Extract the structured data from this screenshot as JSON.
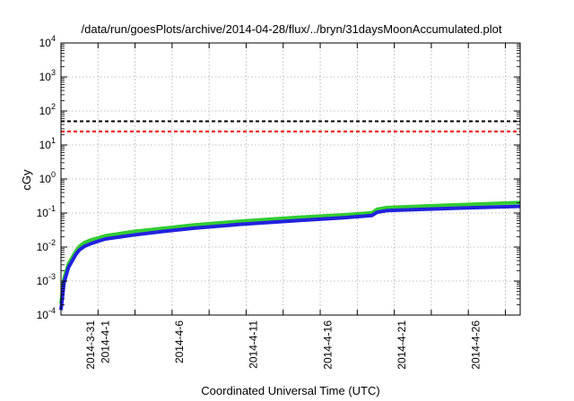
{
  "chart_data": {
    "type": "line",
    "title": "/data/run/goesPlots/archive/2014-04-28/flux/../bryn/31daysMoonAccumulated.plot",
    "xlabel": "Coordinated Universal Time (UTC)",
    "ylabel": "cGy",
    "yscale": "log",
    "ylim": [
      0.0001,
      10000
    ],
    "xlim": [
      "2014-03-29",
      "2014-04-29"
    ],
    "grid": true,
    "y_ticks": [
      {
        "base": "10",
        "exp": "-4"
      },
      {
        "base": "10",
        "exp": "-3"
      },
      {
        "base": "10",
        "exp": "-2"
      },
      {
        "base": "10",
        "exp": "-1"
      },
      {
        "base": "10",
        "exp": "0"
      },
      {
        "base": "10",
        "exp": "1"
      },
      {
        "base": "10",
        "exp": "2"
      },
      {
        "base": "10",
        "exp": "3"
      },
      {
        "base": "10",
        "exp": "4"
      }
    ],
    "x_tick_labels": [
      {
        "date": "2014-03-31",
        "label": "2014-3-31"
      },
      {
        "date": "2014-04-01",
        "label": "2014-4-1"
      },
      {
        "date": "2014-04-06",
        "label": "2014-4-6"
      },
      {
        "date": "2014-04-11",
        "label": "2014-4-11"
      },
      {
        "date": "2014-04-16",
        "label": "2014-4-16"
      },
      {
        "date": "2014-04-21",
        "label": "2014-4-21"
      },
      {
        "date": "2014-04-26",
        "label": "2014-4-26"
      }
    ],
    "reference_lines": [
      {
        "y": 50,
        "color": "#000000"
      },
      {
        "y": 25,
        "color": "#ee0000"
      }
    ],
    "series": [
      {
        "color": "#33cc33",
        "x": [
          "2014-03-29T00:00",
          "2014-03-29T05:00",
          "2014-03-29T12:00",
          "2014-03-30T00:00",
          "2014-03-30T06:00",
          "2014-03-30T14:00",
          "2014-03-31T00:00",
          "2014-03-31T12:00",
          "2014-04-01T00:00",
          "2014-04-02T00:00",
          "2014-04-03T00:00",
          "2014-04-05T00:00",
          "2014-04-07T00:00",
          "2014-04-10T00:00",
          "2014-04-14T00:00",
          "2014-04-17T00:00",
          "2014-04-19T00:00",
          "2014-04-19T08:00",
          "2014-04-20T00:00",
          "2014-04-24T00:00",
          "2014-04-29T00:00"
        ],
        "y": [
          0.00022,
          0.0012,
          0.0032,
          0.0075,
          0.0105,
          0.0135,
          0.016,
          0.0185,
          0.0215,
          0.025,
          0.029,
          0.036,
          0.045,
          0.057,
          0.075,
          0.088,
          0.102,
          0.128,
          0.145,
          0.17,
          0.205
        ]
      },
      {
        "color": "#2222dd",
        "x": [
          "2014-03-29T00:00",
          "2014-03-29T05:00",
          "2014-03-29T12:00",
          "2014-03-30T00:00",
          "2014-03-30T06:00",
          "2014-03-30T14:00",
          "2014-03-31T00:00",
          "2014-03-31T12:00",
          "2014-04-01T00:00",
          "2014-04-02T00:00",
          "2014-04-03T00:00",
          "2014-04-05T00:00",
          "2014-04-07T00:00",
          "2014-04-10T00:00",
          "2014-04-14T00:00",
          "2014-04-17T00:00",
          "2014-04-19T00:00",
          "2014-04-19T08:00",
          "2014-04-20T00:00",
          "2014-04-24T00:00",
          "2014-04-29T00:00"
        ],
        "y": [
          0.00014,
          0.0009,
          0.0025,
          0.006,
          0.0083,
          0.0105,
          0.0125,
          0.0148,
          0.0172,
          0.02,
          0.023,
          0.029,
          0.036,
          0.046,
          0.06,
          0.072,
          0.085,
          0.105,
          0.118,
          0.135,
          0.158
        ]
      }
    ]
  }
}
